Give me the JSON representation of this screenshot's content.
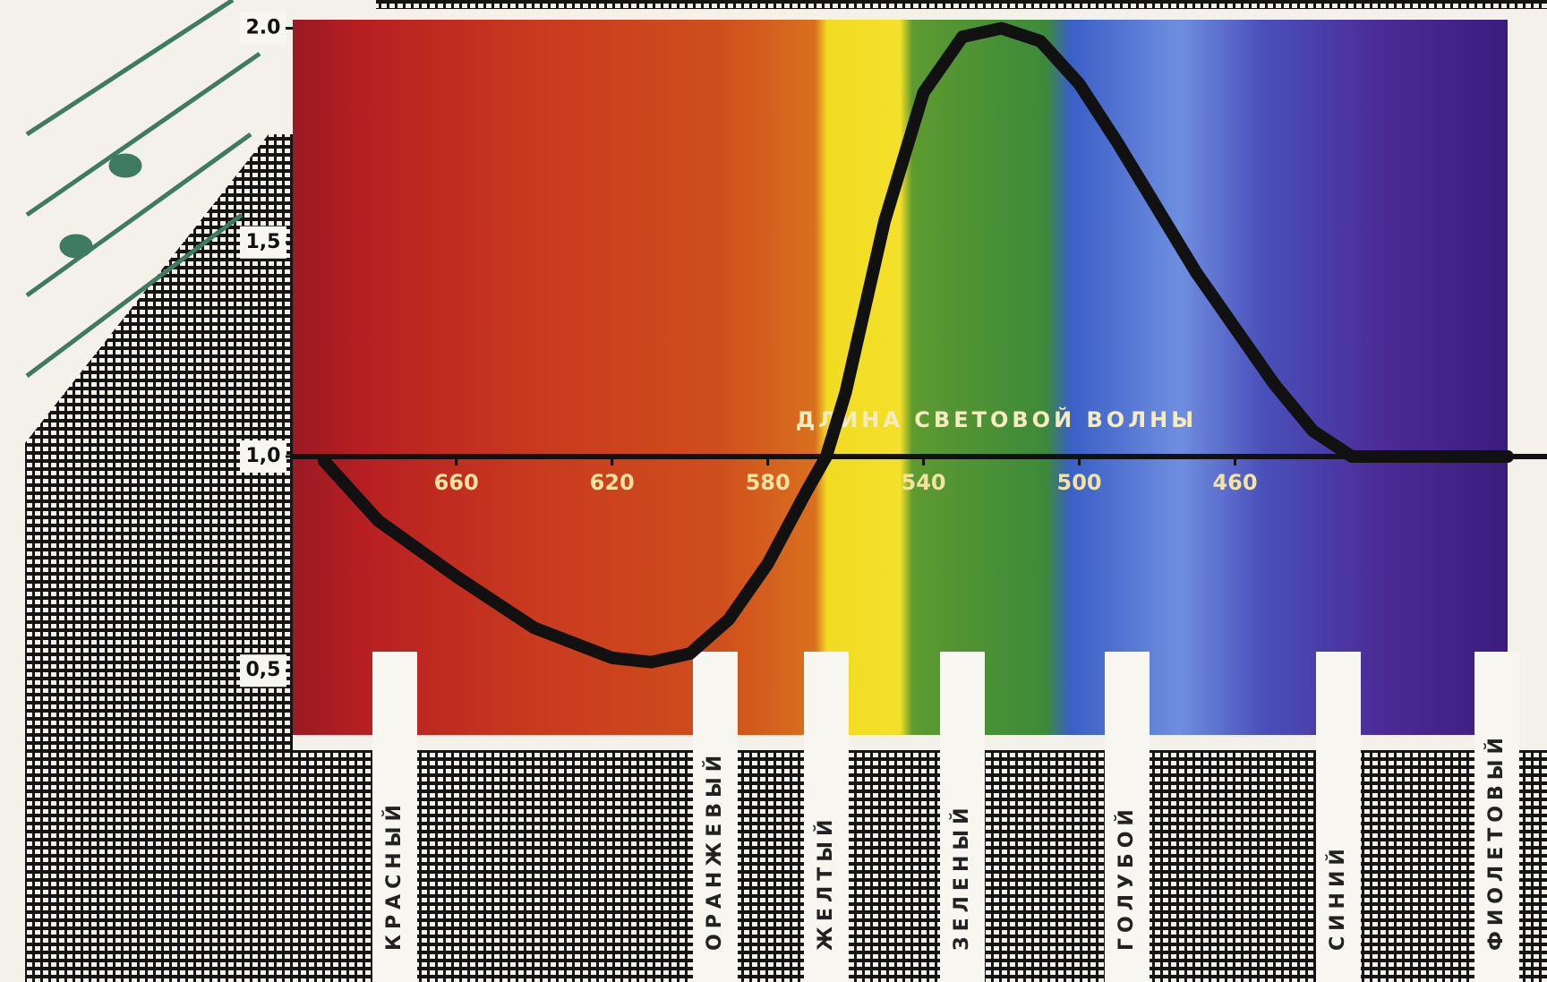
{
  "chart_data": {
    "type": "line",
    "x_label": "ДЛИНА СВЕТОВОЙ ВОЛНЫ",
    "x": [
      694,
      680,
      660,
      640,
      620,
      610,
      600,
      590,
      580,
      570,
      565,
      560,
      550,
      540,
      530,
      520,
      510,
      500,
      490,
      480,
      470,
      460,
      450,
      440,
      430,
      420,
      400,
      390
    ],
    "values": [
      0.99,
      0.85,
      0.72,
      0.6,
      0.53,
      0.52,
      0.54,
      0.62,
      0.75,
      0.92,
      1.0,
      1.15,
      1.55,
      1.85,
      1.98,
      2.0,
      1.97,
      1.87,
      1.73,
      1.58,
      1.43,
      1.3,
      1.17,
      1.06,
      1.0,
      1.0,
      1.0,
      1.0
    ],
    "color": "#111111",
    "xlim": [
      702,
      390
    ],
    "xticks": [
      660,
      620,
      580,
      540,
      500,
      460
    ],
    "ylim": [
      0.35,
      2.02
    ],
    "yticks": [
      {
        "value": 0.5,
        "label": "0,5"
      },
      {
        "value": 1,
        "label": "1,0"
      },
      {
        "value": 1.5,
        "label": "1,5"
      },
      {
        "value": 2,
        "label": "2.0"
      }
    ],
    "color_names": [
      "КРАСНЫЙ",
      "ОРАНЖЕВЫЙ",
      "ЖЕЛТЫЙ",
      "ЗЕЛЕНЫЙ",
      "ГОЛУБОЙ",
      "СИНИЙ",
      "ФИОЛЕТОВЫЙ"
    ]
  }
}
